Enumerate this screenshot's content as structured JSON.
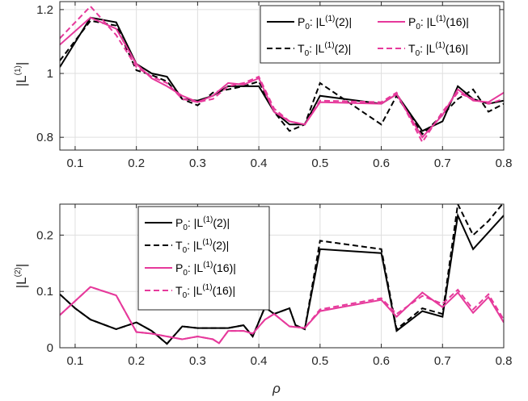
{
  "chart_data": [
    {
      "type": "line",
      "ylabel": "|L",
      "ylabel_sup": "(1)",
      "ylabel_end": "|",
      "xlim": [
        0.075,
        0.8
      ],
      "ylim": [
        0.76,
        1.225
      ],
      "xticks": [
        0.1,
        0.2,
        0.3,
        0.4,
        0.5,
        0.6,
        0.7,
        0.8
      ],
      "xtick_labels": [
        "0.1",
        "0.2",
        "0.3",
        "0.4",
        "0.5",
        "0.6",
        "0.7",
        "0.8"
      ],
      "yticks": [
        0.8,
        1.0,
        1.2
      ],
      "ytick_labels": [
        "0.8",
        "1",
        "1.2"
      ],
      "grid": true,
      "legend": {
        "placement": "top-right",
        "columns": 2,
        "order": [
          0,
          2,
          1,
          3
        ]
      },
      "series": [
        {
          "prefix": "P",
          "prefix_sub": "0",
          "mid": ": |L",
          "sup": "(1)",
          "suffix": "(2)|",
          "color": "#000000",
          "dash": false,
          "x": [
            0.075,
            0.125,
            0.167,
            0.2,
            0.225,
            0.25,
            0.275,
            0.3,
            0.325,
            0.35,
            0.375,
            0.4,
            0.425,
            0.45,
            0.475,
            0.5,
            0.6,
            0.625,
            0.667,
            0.7,
            0.725,
            0.75,
            0.775,
            0.8
          ],
          "y": [
            1.02,
            1.175,
            1.16,
            1.03,
            1.0,
            0.99,
            0.92,
            0.915,
            0.93,
            0.96,
            0.96,
            0.96,
            0.88,
            0.84,
            0.84,
            0.93,
            0.905,
            0.935,
            0.82,
            0.85,
            0.96,
            0.92,
            0.905,
            0.915
          ]
        },
        {
          "prefix": "T",
          "prefix_sub": "0",
          "mid": ": |L",
          "sup": "(1)",
          "suffix": "(2)|",
          "color": "#000000",
          "dash": true,
          "x": [
            0.075,
            0.125,
            0.167,
            0.2,
            0.225,
            0.25,
            0.275,
            0.3,
            0.325,
            0.35,
            0.375,
            0.4,
            0.425,
            0.45,
            0.475,
            0.5,
            0.6,
            0.625,
            0.667,
            0.7,
            0.725,
            0.75,
            0.775,
            0.8
          ],
          "y": [
            1.04,
            1.165,
            1.15,
            1.01,
            0.995,
            0.975,
            0.92,
            0.9,
            0.94,
            0.95,
            0.96,
            0.975,
            0.88,
            0.82,
            0.84,
            0.97,
            0.84,
            0.93,
            0.81,
            0.87,
            0.92,
            0.95,
            0.88,
            0.905
          ]
        },
        {
          "prefix": "P",
          "prefix_sub": "0",
          "mid": ": |L",
          "sup": "(1)",
          "suffix": "(16)|",
          "color": "#e6399b",
          "dash": false,
          "x": [
            0.075,
            0.125,
            0.167,
            0.2,
            0.225,
            0.25,
            0.275,
            0.3,
            0.325,
            0.35,
            0.375,
            0.4,
            0.425,
            0.45,
            0.475,
            0.5,
            0.6,
            0.625,
            0.667,
            0.7,
            0.725,
            0.75,
            0.775,
            0.8
          ],
          "y": [
            1.09,
            1.175,
            1.14,
            1.03,
            0.985,
            0.96,
            0.93,
            0.91,
            0.93,
            0.97,
            0.965,
            0.985,
            0.88,
            0.85,
            0.84,
            0.91,
            0.905,
            0.935,
            0.8,
            0.87,
            0.95,
            0.915,
            0.91,
            0.94
          ]
        },
        {
          "prefix": "T",
          "prefix_sub": "0",
          "mid": ": |L",
          "sup": "(1)",
          "suffix": "(16)|",
          "color": "#e6399b",
          "dash": true,
          "x": [
            0.075,
            0.125,
            0.167,
            0.2,
            0.225,
            0.25,
            0.275,
            0.3,
            0.325,
            0.35,
            0.375,
            0.4,
            0.425,
            0.45,
            0.475,
            0.5,
            0.6,
            0.625,
            0.667,
            0.7,
            0.725,
            0.75,
            0.775,
            0.8
          ],
          "y": [
            1.11,
            1.21,
            1.12,
            1.02,
            0.99,
            0.97,
            0.92,
            0.91,
            0.92,
            0.96,
            0.97,
            0.99,
            0.89,
            0.85,
            0.84,
            0.915,
            0.91,
            0.94,
            0.785,
            0.88,
            0.94,
            0.92,
            0.905,
            0.92
          ]
        }
      ]
    },
    {
      "type": "line",
      "ylabel": "|L",
      "ylabel_sup": "(2)",
      "ylabel_end": "|",
      "xlabel": "ρ",
      "xlim": [
        0.075,
        0.8
      ],
      "ylim": [
        0,
        0.255
      ],
      "xticks": [
        0.1,
        0.2,
        0.3,
        0.4,
        0.5,
        0.6,
        0.7,
        0.8
      ],
      "xtick_labels": [
        "0.1",
        "0.2",
        "0.3",
        "0.4",
        "0.5",
        "0.6",
        "0.7",
        "0.8"
      ],
      "yticks": [
        0,
        0.1,
        0.2
      ],
      "ytick_labels": [
        "0",
        "0.1",
        "0.2"
      ],
      "grid": true,
      "legend": {
        "placement": "top-center",
        "columns": 1,
        "order": [
          0,
          1,
          2,
          3
        ]
      },
      "series": [
        {
          "prefix": "P",
          "prefix_sub": "0",
          "mid": ": |L",
          "sup": "(1)",
          "suffix": "(2)|",
          "color": "#000000",
          "dash": false,
          "x": [
            0.075,
            0.1,
            0.125,
            0.167,
            0.2,
            0.225,
            0.25,
            0.275,
            0.3,
            0.325,
            0.35,
            0.375,
            0.39,
            0.41,
            0.425,
            0.45,
            0.46,
            0.475,
            0.5,
            0.6,
            0.625,
            0.667,
            0.7,
            0.725,
            0.75,
            0.775,
            0.8
          ],
          "y": [
            0.095,
            0.07,
            0.05,
            0.033,
            0.045,
            0.03,
            0.007,
            0.038,
            0.035,
            0.035,
            0.035,
            0.04,
            0.02,
            0.072,
            0.06,
            0.07,
            0.04,
            0.033,
            0.175,
            0.168,
            0.03,
            0.065,
            0.055,
            0.235,
            0.175,
            0.205,
            0.235
          ]
        },
        {
          "prefix": "T",
          "prefix_sub": "0",
          "mid": ": |L",
          "sup": "(1)",
          "suffix": "(2)|",
          "color": "#000000",
          "dash": true,
          "x": [
            0.075,
            0.1,
            0.125,
            0.167,
            0.2,
            0.225,
            0.25,
            0.275,
            0.3,
            0.325,
            0.35,
            0.375,
            0.39,
            0.41,
            0.425,
            0.45,
            0.46,
            0.475,
            0.5,
            0.6,
            0.625,
            0.667,
            0.7,
            0.725,
            0.75,
            0.775,
            0.8
          ],
          "y": [
            0.095,
            0.07,
            0.05,
            0.033,
            0.045,
            0.03,
            0.007,
            0.038,
            0.035,
            0.035,
            0.035,
            0.04,
            0.02,
            0.072,
            0.06,
            0.07,
            0.04,
            0.033,
            0.19,
            0.175,
            0.033,
            0.07,
            0.06,
            0.255,
            0.2,
            0.225,
            0.258
          ]
        },
        {
          "prefix": "P",
          "prefix_sub": "0",
          "mid": ": |L",
          "sup": "(1)",
          "suffix": "(16)|",
          "color": "#e6399b",
          "dash": false,
          "x": [
            0.075,
            0.125,
            0.167,
            0.2,
            0.225,
            0.25,
            0.275,
            0.3,
            0.325,
            0.335,
            0.35,
            0.375,
            0.39,
            0.41,
            0.425,
            0.45,
            0.475,
            0.5,
            0.6,
            0.625,
            0.667,
            0.7,
            0.725,
            0.75,
            0.775,
            0.8
          ],
          "y": [
            0.058,
            0.108,
            0.093,
            0.028,
            0.025,
            0.02,
            0.015,
            0.02,
            0.015,
            0.008,
            0.03,
            0.03,
            0.025,
            0.05,
            0.06,
            0.038,
            0.035,
            0.065,
            0.085,
            0.055,
            0.098,
            0.072,
            0.098,
            0.062,
            0.09,
            0.045
          ]
        },
        {
          "prefix": "T",
          "prefix_sub": "0",
          "mid": ": |L",
          "sup": "(1)",
          "suffix": "(16)|",
          "color": "#e6399b",
          "dash": true,
          "x": [
            0.075,
            0.125,
            0.167,
            0.2,
            0.225,
            0.25,
            0.275,
            0.3,
            0.325,
            0.335,
            0.35,
            0.375,
            0.39,
            0.41,
            0.425,
            0.45,
            0.475,
            0.5,
            0.6,
            0.625,
            0.667,
            0.7,
            0.725,
            0.75,
            0.775,
            0.8
          ],
          "y": [
            0.058,
            0.108,
            0.093,
            0.028,
            0.025,
            0.02,
            0.015,
            0.02,
            0.015,
            0.008,
            0.03,
            0.03,
            0.025,
            0.05,
            0.06,
            0.038,
            0.035,
            0.068,
            0.088,
            0.06,
            0.092,
            0.078,
            0.103,
            0.068,
            0.095,
            0.05
          ]
        }
      ]
    }
  ]
}
